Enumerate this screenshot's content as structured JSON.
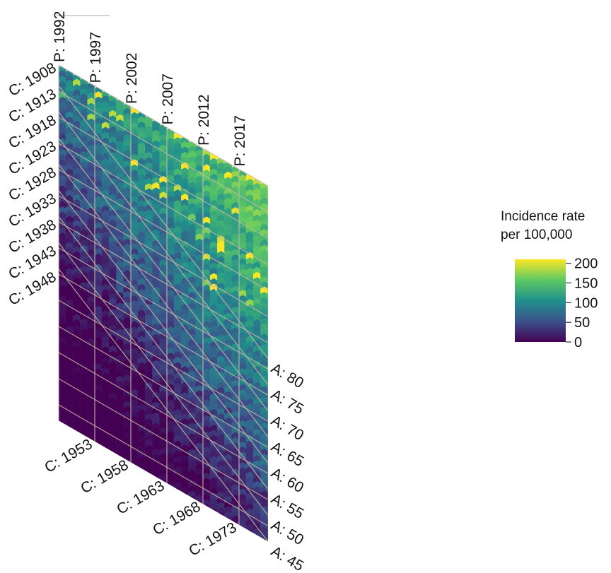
{
  "chart_data": {
    "type": "heatmap",
    "subtype": "hexamap (Lexis diagram: age-period-cohort)",
    "axes": {
      "period": {
        "prefix": "P:",
        "ticks": [
          1992,
          1997,
          2002,
          2007,
          2012,
          2017
        ],
        "range": [
          1992,
          2021
        ]
      },
      "cohort": {
        "prefix": "C:",
        "ticks": [
          1908,
          1913,
          1918,
          1923,
          1928,
          1933,
          1938,
          1943,
          1948,
          1953,
          1958,
          1963,
          1968,
          1973
        ],
        "range": [
          1908,
          1976
        ]
      },
      "age": {
        "prefix": "A:",
        "ticks": [
          45,
          50,
          55,
          60,
          65,
          70,
          75,
          80
        ],
        "range": [
          45,
          84
        ]
      }
    },
    "grid": true,
    "value_trend": "incidence rate increases with age (low at A: 45, high at A: 80+), slight increase over periods",
    "color_scale": {
      "name": "viridis",
      "range": [
        0,
        210
      ],
      "ticks": [
        0,
        50,
        100,
        150,
        200
      ],
      "stops": [
        "#440154",
        "#3b528b",
        "#21908c",
        "#5dc963",
        "#fde725"
      ]
    },
    "legend": {
      "title_lines": [
        "Incidence rate",
        "per 100,000"
      ],
      "position": "right"
    }
  }
}
